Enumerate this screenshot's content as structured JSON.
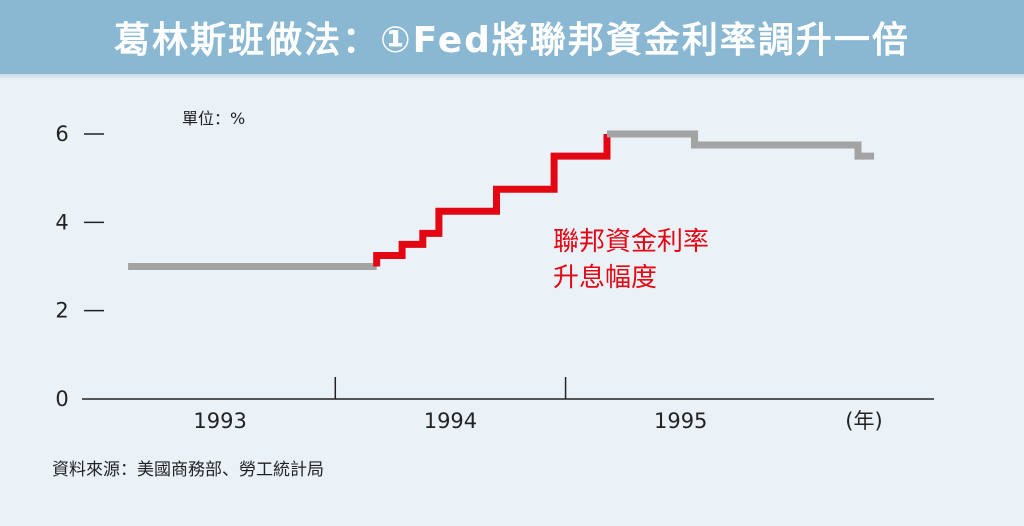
{
  "header": {
    "title": "葛林斯班做法：①Fed將聯邦資金利率調升一倍"
  },
  "chart_data": {
    "type": "line",
    "unit_label": "單位：%",
    "ylim": [
      0,
      6
    ],
    "yticks": [
      0,
      2,
      4,
      6
    ],
    "xlim": [
      1992.4,
      1996.1
    ],
    "year_labels": [
      "1993",
      "1994",
      "1995"
    ],
    "year_label_positions": [
      1993.0,
      1994.0,
      1995.0
    ],
    "year_boundaries": [
      1993.5,
      1994.5
    ],
    "x_unit": "(年)",
    "series": [
      {
        "name": "",
        "color": "#a3a3a3",
        "points": [
          [
            1992.6,
            3.0
          ],
          [
            1993.68,
            3.0
          ]
        ]
      },
      {
        "name": "",
        "color": "#e30613",
        "points": [
          [
            1993.68,
            3.0
          ],
          [
            1993.68,
            3.25
          ],
          [
            1993.79,
            3.25
          ],
          [
            1993.79,
            3.5
          ],
          [
            1993.88,
            3.5
          ],
          [
            1993.88,
            3.75
          ],
          [
            1993.95,
            3.75
          ],
          [
            1993.95,
            4.25
          ],
          [
            1994.2,
            4.25
          ],
          [
            1994.2,
            4.75
          ],
          [
            1994.45,
            4.75
          ],
          [
            1994.45,
            5.5
          ],
          [
            1994.68,
            5.5
          ],
          [
            1994.68,
            6.0
          ]
        ]
      },
      {
        "name": "",
        "color": "#a3a3a3",
        "points": [
          [
            1994.68,
            6.0
          ],
          [
            1995.06,
            6.0
          ],
          [
            1995.06,
            5.75
          ],
          [
            1995.77,
            5.75
          ],
          [
            1995.77,
            5.5
          ],
          [
            1995.84,
            5.5
          ]
        ]
      }
    ],
    "annotation": [
      "聯邦資金利率",
      "升息幅度"
    ],
    "annotation_color": "#e30613",
    "grid": false
  },
  "source": "資料來源：美國商務部、勞工統計局"
}
